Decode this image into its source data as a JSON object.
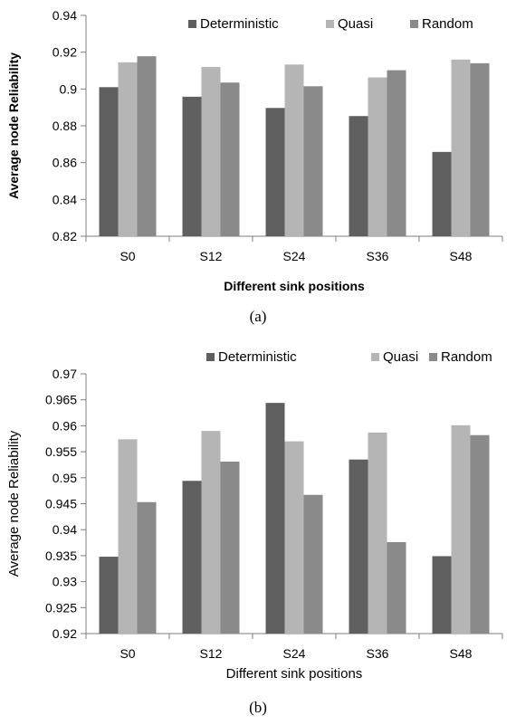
{
  "colors": {
    "Deterministic": "#5f5f5f",
    "Quasi": "#b5b5b5",
    "Random": "#8a8a8a",
    "axis": "#7f7f7f"
  },
  "chart_data": [
    {
      "type": "bar",
      "caption": "(a)",
      "categories": [
        "S0",
        "S12",
        "S24",
        "S36",
        "S48"
      ],
      "series": [
        {
          "name": "Deterministic",
          "values": [
            0.901,
            0.8958,
            0.8897,
            0.8853,
            0.8658
          ]
        },
        {
          "name": "Quasi",
          "values": [
            0.9145,
            0.912,
            0.9133,
            0.9063,
            0.916
          ]
        },
        {
          "name": "Random",
          "values": [
            0.9178,
            0.9035,
            0.9015,
            0.9102,
            0.914
          ]
        }
      ],
      "xlabel": "Different sink positions",
      "ylabel": "Average node Reliability",
      "ylim": [
        0.82,
        0.94
      ],
      "yticks": [
        "0.82",
        "0.84",
        "0.86",
        "0.88",
        "0.9",
        "0.92",
        "0.94"
      ],
      "grid": false,
      "legend_position": "top-right"
    },
    {
      "type": "bar",
      "caption": "(b)",
      "categories": [
        "S0",
        "S12",
        "S24",
        "S36",
        "S48"
      ],
      "series": [
        {
          "name": "Deterministic",
          "values": [
            0.9348,
            0.9494,
            0.9644,
            0.9535,
            0.9349
          ]
        },
        {
          "name": "Quasi",
          "values": [
            0.9574,
            0.959,
            0.957,
            0.9587,
            0.9601
          ]
        },
        {
          "name": "Random",
          "values": [
            0.9453,
            0.9531,
            0.9467,
            0.9376,
            0.9582
          ]
        }
      ],
      "xlabel": "Different sink positions",
      "ylabel": "Average node Reliability",
      "ylim": [
        0.92,
        0.97
      ],
      "yticks": [
        "0.92",
        "0.925",
        "0.93",
        "0.935",
        "0.94",
        "0.945",
        "0.95",
        "0.955",
        "0.96",
        "0.965",
        "0.97"
      ],
      "grid": false,
      "legend_position": "top-right"
    }
  ]
}
